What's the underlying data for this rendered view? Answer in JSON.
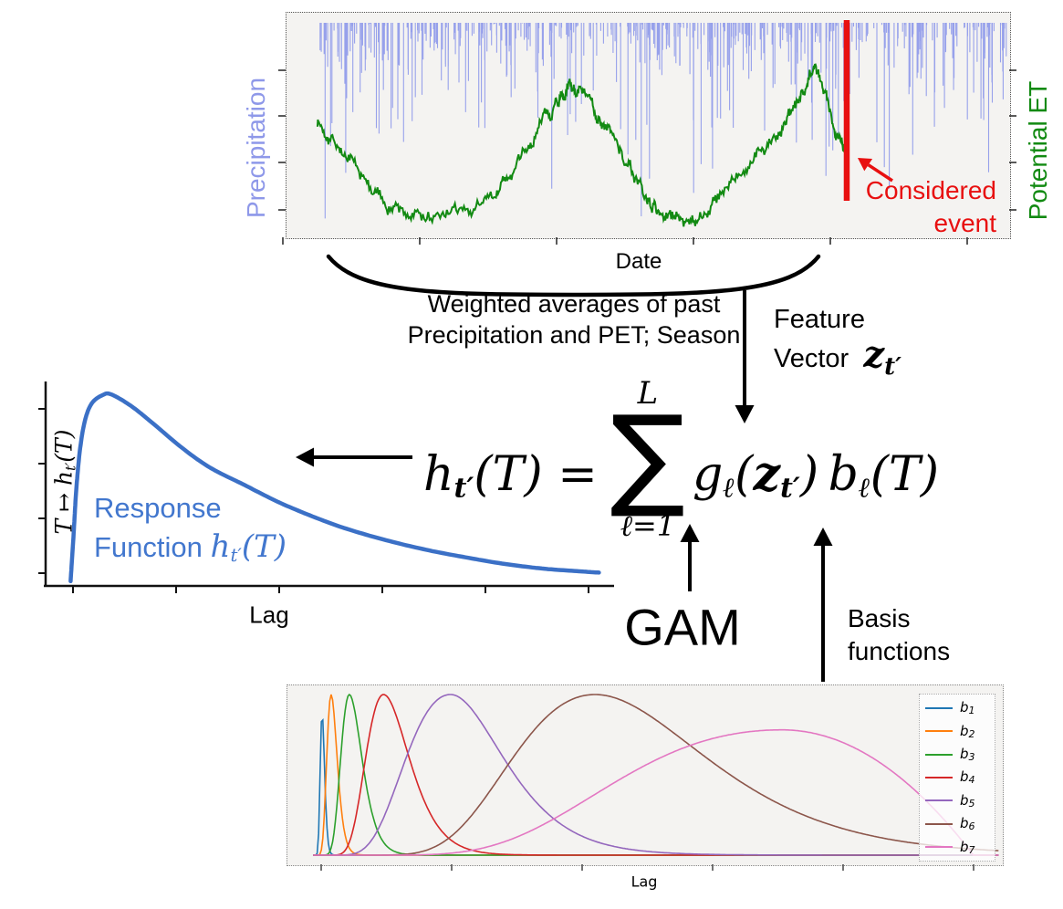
{
  "top_plot": {
    "xlabel": "Date",
    "ylabel_left": "Precipitation",
    "ylabel_right": "Potential ET",
    "event_line1": "Considered",
    "event_line2": "event"
  },
  "annotations": {
    "brace_line1": "Weighted averages of past",
    "brace_line2": "Precipitation and PET; Season",
    "feature_line1": "Feature",
    "feature_line2": "Vector",
    "feature_symbol": "z",
    "feature_symbol_sub": "t′",
    "gam": "GAM",
    "basis_line1": "Basis",
    "basis_line2": "functions"
  },
  "equation": {
    "lhs_base": "h",
    "lhs_sub": "t′",
    "lhs_arg": "(T)",
    "equals": "=",
    "sum_upper": "L",
    "sum_symbol": "∑",
    "sum_lower": "ℓ=1",
    "g_base": "g",
    "g_sub": "ℓ",
    "open": "(",
    "z_base": "z",
    "z_sub": "t′",
    "close": ")",
    "b_base": "b",
    "b_sub": "ℓ",
    "b_arg": "(T)"
  },
  "response_plot": {
    "ylabel_base": "T ↦ h",
    "ylabel_sub": "t′",
    "ylabel_arg": "(T)",
    "xlabel": "Lag",
    "caption_line1": "Response",
    "caption_word": "Function",
    "caption_h": "h",
    "caption_sub": "t′",
    "caption_arg": "(T)"
  },
  "basis_plot": {
    "xlabel": "Lag",
    "legend": [
      {
        "base": "b",
        "sub": "1",
        "color": "#1f77b4"
      },
      {
        "base": "b",
        "sub": "2",
        "color": "#ff7f0e"
      },
      {
        "base": "b",
        "sub": "3",
        "color": "#2ca02c"
      },
      {
        "base": "b",
        "sub": "4",
        "color": "#d62728"
      },
      {
        "base": "b",
        "sub": "5",
        "color": "#9467bd"
      },
      {
        "base": "b",
        "sub": "6",
        "color": "#8c564b"
      },
      {
        "base": "b",
        "sub": "7",
        "color": "#e377c2"
      }
    ]
  },
  "colors": {
    "precipitation": "#8E98E9",
    "pet": "#128A12",
    "event": "#E81010",
    "response_curve": "#3B70C6",
    "response_text": "#4277CE",
    "arrow": "#000000"
  },
  "chart_data": [
    {
      "id": "timeseries",
      "type": "line",
      "xlabel": "Date",
      "ylabel_left": "Precipitation",
      "ylabel_right": "Potential ET",
      "annotation": "Considered event",
      "event_x_fraction": 0.7755,
      "series": [
        {
          "name": "Precipitation",
          "render": "downward-spikes",
          "color": "#97A1EB",
          "seed": 42,
          "n_spikes": 480,
          "mean_depth": 0.11,
          "heavy_prob": 0.07,
          "featured_spikes": [
            [
              0.011,
              0.92
            ],
            [
              0.019,
              0.58
            ],
            [
              0.109,
              0.4
            ],
            [
              0.142,
              0.35
            ],
            [
              0.215,
              0.42
            ],
            [
              0.281,
              0.35
            ],
            [
              0.34,
              0.78
            ],
            [
              0.44,
              0.5
            ],
            [
              0.462,
              0.55
            ],
            [
              0.47,
              0.91
            ],
            [
              0.478,
              0.48
            ],
            [
              0.546,
              0.8
            ],
            [
              0.585,
              0.45
            ],
            [
              0.718,
              0.55
            ],
            [
              0.738,
              0.72
            ],
            [
              0.748,
              0.6
            ],
            [
              0.83,
              0.78
            ],
            [
              0.864,
              0.62
            ],
            [
              0.91,
              0.4
            ],
            [
              0.963,
              0.45
            ]
          ]
        },
        {
          "name": "Potential ET",
          "color": "#128A12",
          "seed": 7,
          "noise_sd": 0.028,
          "noise_ar": 0.78,
          "keypoints": [
            [
              0.044,
              0.63
            ],
            [
              0.07,
              0.52
            ],
            [
              0.1,
              0.34
            ],
            [
              0.135,
              0.2
            ],
            [
              0.17,
              0.115
            ],
            [
              0.21,
              0.1
            ],
            [
              0.25,
              0.14
            ],
            [
              0.285,
              0.22
            ],
            [
              0.315,
              0.36
            ],
            [
              0.345,
              0.55
            ],
            [
              0.37,
              0.72
            ],
            [
              0.39,
              0.82
            ],
            [
              0.41,
              0.78
            ],
            [
              0.43,
              0.68
            ],
            [
              0.45,
              0.56
            ],
            [
              0.475,
              0.38
            ],
            [
              0.5,
              0.2
            ],
            [
              0.52,
              0.125
            ],
            [
              0.55,
              0.1
            ],
            [
              0.58,
              0.14
            ],
            [
              0.615,
              0.27
            ],
            [
              0.65,
              0.43
            ],
            [
              0.68,
              0.56
            ],
            [
              0.705,
              0.7
            ],
            [
              0.727,
              0.93
            ],
            [
              0.745,
              0.77
            ],
            [
              0.762,
              0.58
            ],
            [
              0.7755,
              0.49
            ]
          ]
        }
      ]
    },
    {
      "id": "response_function",
      "type": "line",
      "xlabel": "Lag",
      "ylabel": "T ↦ h_t′(T)",
      "color": "#3B70C6",
      "points": [
        [
          0.044,
          0.02
        ],
        [
          0.049,
          0.25
        ],
        [
          0.054,
          0.5
        ],
        [
          0.061,
          0.72
        ],
        [
          0.07,
          0.87
        ],
        [
          0.082,
          0.955
        ],
        [
          0.1,
          0.995
        ],
        [
          0.115,
          1.0
        ],
        [
          0.15,
          0.94
        ],
        [
          0.19,
          0.845
        ],
        [
          0.24,
          0.72
        ],
        [
          0.29,
          0.615
        ],
        [
          0.35,
          0.525
        ],
        [
          0.41,
          0.435
        ],
        [
          0.47,
          0.36
        ],
        [
          0.53,
          0.295
        ],
        [
          0.6,
          0.235
        ],
        [
          0.67,
          0.185
        ],
        [
          0.74,
          0.145
        ],
        [
          0.81,
          0.11
        ],
        [
          0.88,
          0.085
        ],
        [
          0.94,
          0.072
        ],
        [
          0.975,
          0.065
        ]
      ]
    },
    {
      "id": "basis_functions",
      "type": "line",
      "xlabel": "Lag",
      "series": [
        {
          "name": "b1",
          "color": "#1f77b4",
          "peak_u": 0.017,
          "sigma_left": 0.18,
          "sigma_right": 0.19,
          "height": 0.88
        },
        {
          "name": "b2",
          "color": "#ff7f0e",
          "peak_u": 0.03,
          "sigma_left": 0.24,
          "sigma_right": 0.25,
          "height": 1.0
        },
        {
          "name": "b3",
          "color": "#2ca02c",
          "peak_u": 0.056,
          "sigma_left": 0.25,
          "sigma_right": 0.28,
          "height": 1.0
        },
        {
          "name": "b4",
          "color": "#d62728",
          "peak_u": 0.105,
          "sigma_left": 0.28,
          "sigma_right": 0.3,
          "height": 1.0
        },
        {
          "name": "b5",
          "color": "#9467bd",
          "peak_u": 0.201,
          "sigma_left": 0.38,
          "sigma_right": 0.32,
          "height": 1.0
        },
        {
          "name": "b6",
          "color": "#8c564b",
          "peak_u": 0.408,
          "sigma_left": 0.34,
          "sigma_right": 0.33,
          "height": 1.0
        },
        {
          "name": "b7",
          "color": "#e377c2",
          "peak_u": 0.676,
          "sigma_left": 0.42,
          "taper_end": 0.95,
          "height": 0.78
        }
      ]
    }
  ]
}
